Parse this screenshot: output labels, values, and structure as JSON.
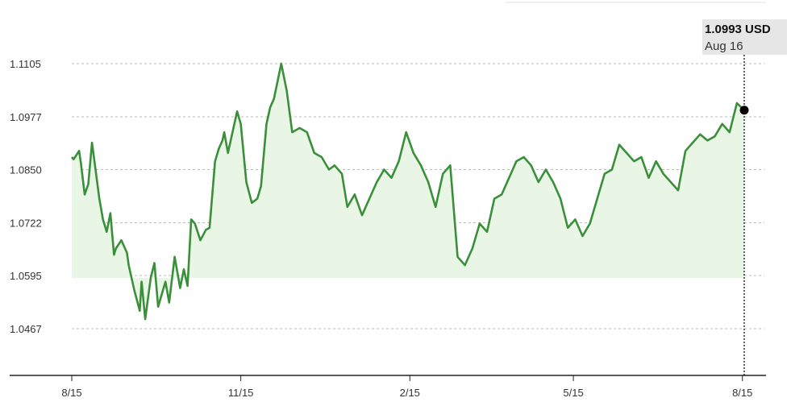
{
  "tooltip": {
    "value": "1.0993 USD",
    "date": "Aug 16"
  },
  "colors": {
    "line": "#3a8f3a",
    "fill": "#e9f6e6",
    "grid": "#bbbbbb",
    "axis": "#222222",
    "marker": "#000000"
  },
  "chart_data": {
    "type": "area",
    "title": "",
    "xlabel": "",
    "ylabel": "",
    "yticks": [
      "1.0467",
      "1.0595",
      "1.0722",
      "1.0850",
      "1.0977",
      "1.1105"
    ],
    "ylim": [
      1.038,
      1.116
    ],
    "xticks": [
      "8/15",
      "11/15",
      "2/15",
      "5/15",
      "8/15"
    ],
    "xlim": [
      "2022-08-15",
      "2023-08-16"
    ],
    "grid": true,
    "legend": "none",
    "series": [
      {
        "x": [
          "2022-08-15",
          "2022-08-16",
          "2022-08-19",
          "2022-08-20",
          "2022-08-22",
          "2022-08-24",
          "2022-08-26",
          "2022-08-30",
          "2022-09-01",
          "2022-09-03",
          "2022-09-05",
          "2022-09-07",
          "2022-09-08",
          "2022-09-11",
          "2022-09-14",
          "2022-09-15",
          "2022-09-18",
          "2022-09-21",
          "2022-09-22",
          "2022-09-24",
          "2022-09-27",
          "2022-09-29",
          "2022-10-01",
          "2022-10-05",
          "2022-10-07",
          "2022-10-10",
          "2022-10-13",
          "2022-10-15",
          "2022-10-17",
          "2022-10-19",
          "2022-10-21",
          "2022-10-24",
          "2022-10-27",
          "2022-10-29",
          "2022-11-01",
          "2022-11-03",
          "2022-11-05",
          "2022-11-06",
          "2022-11-08",
          "2022-11-11",
          "2022-11-13",
          "2022-11-15",
          "2022-11-18",
          "2022-11-21",
          "2022-11-24",
          "2022-11-26",
          "2022-11-29",
          "2022-12-01",
          "2022-12-03",
          "2022-12-07",
          "2022-12-10",
          "2022-12-13",
          "2022-12-17",
          "2022-12-21",
          "2022-12-25",
          "2022-12-29",
          "2023-01-02",
          "2023-01-05",
          "2023-01-09",
          "2023-01-12",
          "2023-01-16",
          "2023-01-20",
          "2023-01-24",
          "2023-01-28",
          "2023-02-01",
          "2023-02-05",
          "2023-02-09",
          "2023-02-13",
          "2023-02-17",
          "2023-02-21",
          "2023-02-25",
          "2023-03-01",
          "2023-03-05",
          "2023-03-09",
          "2023-03-13",
          "2023-03-17",
          "2023-03-21",
          "2023-03-25",
          "2023-03-29",
          "2023-04-02",
          "2023-04-06",
          "2023-04-10",
          "2023-04-14",
          "2023-04-18",
          "2023-04-22",
          "2023-04-26",
          "2023-04-30",
          "2023-05-04",
          "2023-05-08",
          "2023-05-12",
          "2023-05-16",
          "2023-05-20",
          "2023-05-24",
          "2023-05-28",
          "2023-06-01",
          "2023-06-05",
          "2023-06-09",
          "2023-06-13",
          "2023-06-17",
          "2023-06-21",
          "2023-06-25",
          "2023-06-29",
          "2023-07-03",
          "2023-07-07",
          "2023-07-11",
          "2023-07-15",
          "2023-07-19",
          "2023-07-23",
          "2023-07-27",
          "2023-07-31",
          "2023-08-04",
          "2023-08-08",
          "2023-08-12",
          "2023-08-16"
        ],
        "y": [
          1.088,
          1.0875,
          1.0895,
          1.0865,
          1.079,
          1.0815,
          1.0915,
          1.078,
          1.073,
          1.07,
          1.0745,
          1.0645,
          1.066,
          1.068,
          1.065,
          1.062,
          1.056,
          1.051,
          1.058,
          1.049,
          1.059,
          1.0625,
          1.052,
          1.058,
          1.053,
          1.064,
          1.0565,
          1.061,
          1.057,
          1.073,
          1.072,
          1.068,
          1.0705,
          1.071,
          1.087,
          1.09,
          1.092,
          1.094,
          1.089,
          1.095,
          1.099,
          1.096,
          1.082,
          1.077,
          1.078,
          1.081,
          1.096,
          1.1,
          1.102,
          1.1105,
          1.104,
          1.094,
          1.095,
          1.094,
          1.089,
          1.088,
          1.085,
          1.086,
          1.084,
          1.076,
          1.079,
          1.074,
          1.078,
          1.082,
          1.085,
          1.083,
          1.087,
          1.094,
          1.089,
          1.086,
          1.082,
          1.076,
          1.084,
          1.086,
          1.064,
          1.062,
          1.066,
          1.072,
          1.07,
          1.078,
          1.079,
          1.083,
          1.087,
          1.088,
          1.086,
          1.082,
          1.085,
          1.082,
          1.078,
          1.071,
          1.073,
          1.069,
          1.072,
          1.078,
          1.084,
          1.085,
          1.091,
          1.089,
          1.087,
          1.088,
          1.083,
          1.087,
          1.084,
          1.082,
          1.08,
          1.0895,
          1.0915,
          1.0935,
          1.092,
          1.093,
          1.096,
          1.094,
          1.101,
          1.0993
        ]
      }
    ],
    "annotation": {
      "x": "2023-08-16",
      "y": 1.0993,
      "label": "1.0993 USD",
      "date": "Aug 16"
    }
  }
}
